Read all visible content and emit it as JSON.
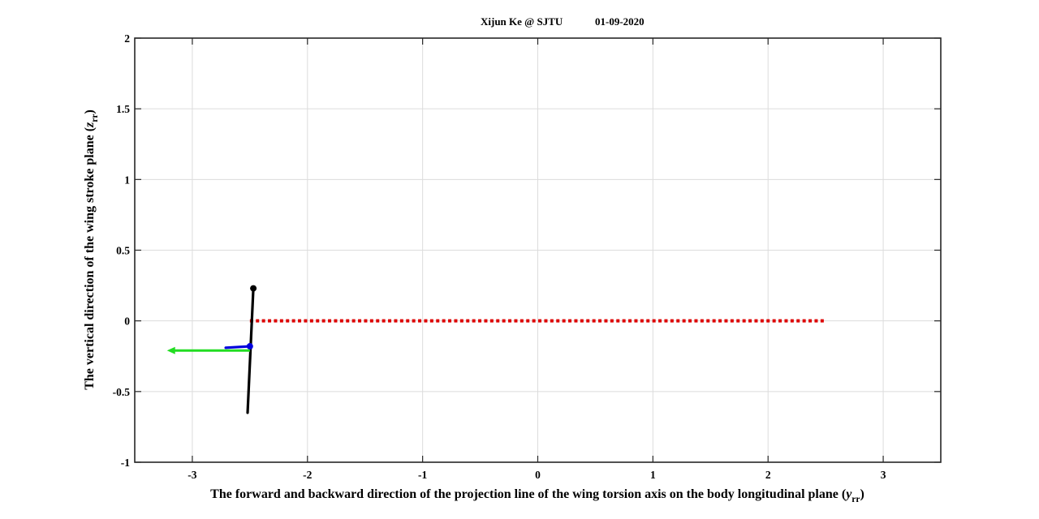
{
  "header": {
    "author": "Xijun Ke @ SJTU",
    "date": "01-09-2020"
  },
  "chart_data": {
    "type": "line",
    "xlabel": {
      "text": "The forward and backward direction of the projection line of the wing torsion axis on the body longitudinal plane (",
      "variable": "y",
      "subscript": "rr",
      "close": ")"
    },
    "ylabel": {
      "text": "The vertical direction of the wing stroke plane (",
      "variable": "z",
      "subscript": "rr",
      "close": ")"
    },
    "xlim": [
      -3.5,
      3.5
    ],
    "ylim": [
      -1,
      2
    ],
    "xticks": [
      -3,
      -2,
      -1,
      0,
      1,
      2,
      3
    ],
    "xtick_labels": [
      "-3",
      "-2",
      "-1",
      "0",
      "1",
      "2",
      "3"
    ],
    "yticks": [
      -1,
      -0.5,
      0,
      0.5,
      1,
      1.5,
      2
    ],
    "ytick_labels": [
      "-1",
      "-0.5",
      "0",
      "0.5",
      "1",
      "1.5",
      "2"
    ],
    "grid": true,
    "series": [
      {
        "role": "stroke-plane-line",
        "style": "dotted",
        "color": "#dd0000",
        "x": [
          -2.5,
          2.5
        ],
        "y": [
          0,
          0
        ]
      },
      {
        "role": "wing-chord",
        "style": "solid",
        "color": "#000000",
        "x": [
          -2.52,
          -2.47
        ],
        "y": [
          -0.65,
          0.23
        ],
        "end_marker": {
          "x": -2.47,
          "y": 0.23
        }
      },
      {
        "role": "torsion-axis-vector",
        "style": "solid",
        "color": "#0000dd",
        "x": [
          -2.5,
          -2.71
        ],
        "y": [
          -0.18,
          -0.19
        ],
        "end_marker": {
          "x": -2.5,
          "y": -0.18
        }
      },
      {
        "role": "velocity-arrow",
        "style": "arrow",
        "color": "#22dd22",
        "x": [
          -2.5,
          -3.22
        ],
        "y": [
          -0.21,
          -0.21
        ]
      }
    ]
  }
}
